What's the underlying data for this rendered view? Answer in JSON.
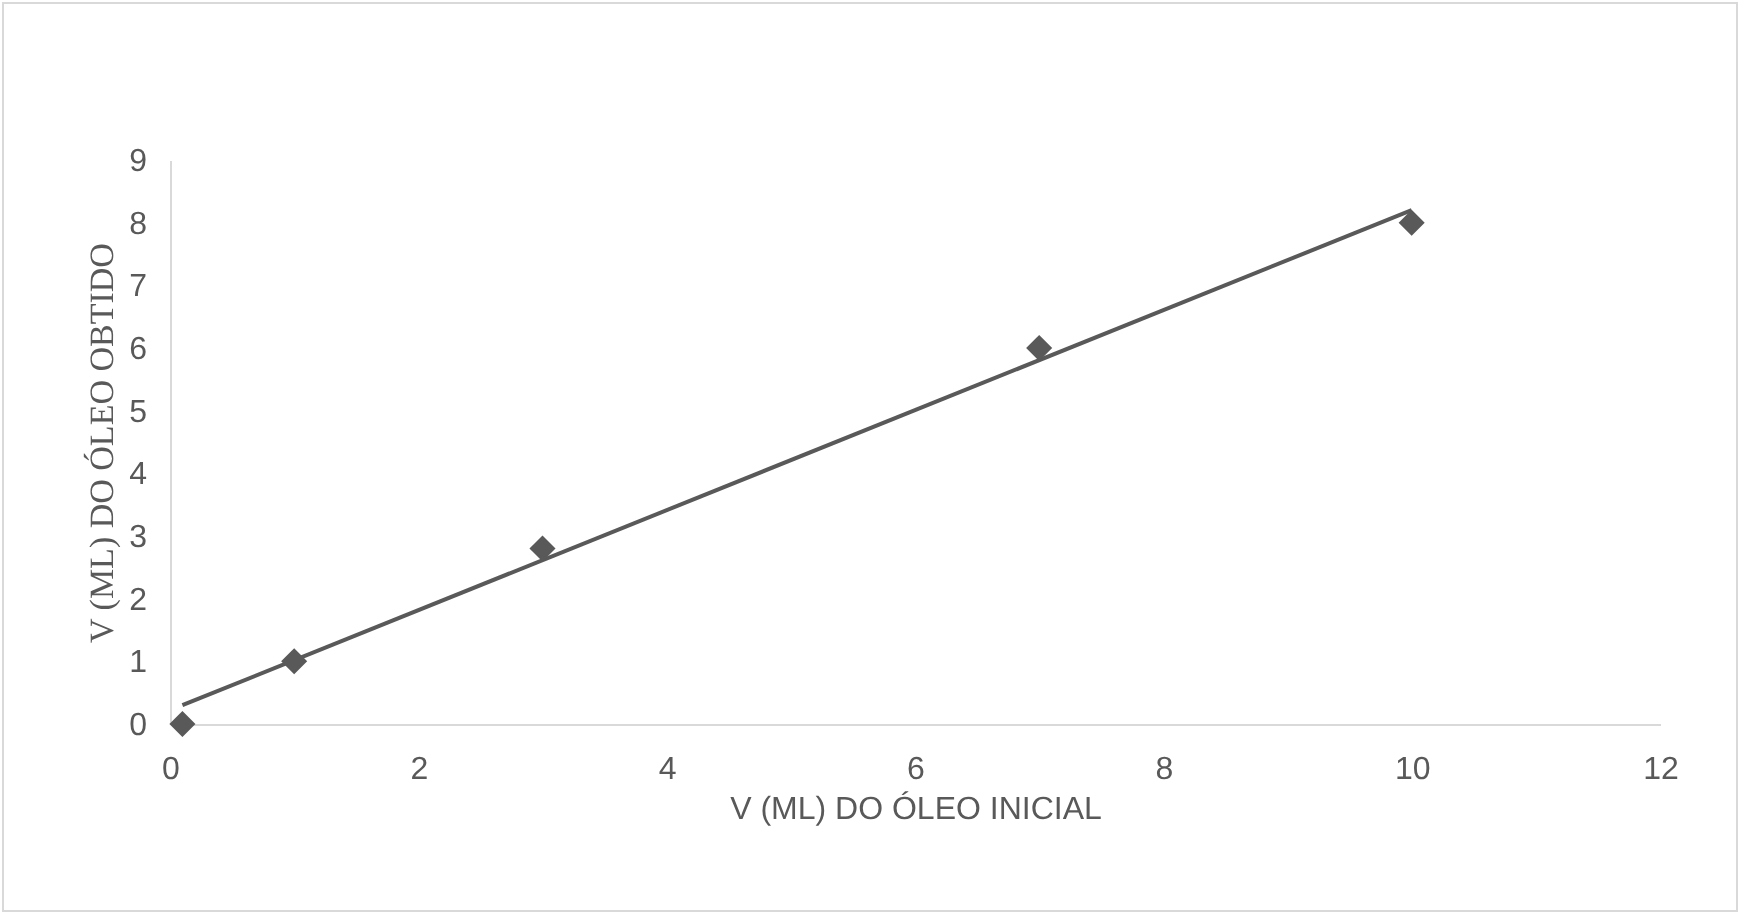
{
  "chart_data": {
    "type": "scatter",
    "xlabel": "V (ML) DO ÓLEO INICIAL",
    "ylabel": "V (ML) DO ÓLEO OBTIDO",
    "xlim": [
      0,
      12
    ],
    "xticks": [
      0,
      2,
      4,
      6,
      8,
      10,
      12
    ],
    "ylim": [
      0,
      9
    ],
    "yticks": [
      0,
      1,
      2,
      3,
      4,
      5,
      6,
      7,
      8,
      9
    ],
    "grid": false,
    "marker": "diamond",
    "series": [
      {
        "type": "scatter",
        "color": "#595959",
        "x": [
          0.1,
          1,
          3,
          7,
          10
        ],
        "values": [
          0,
          1,
          2.8,
          6,
          8
        ]
      },
      {
        "type": "line",
        "color": "#595959",
        "marker": "none",
        "x": [
          0.1,
          10
        ],
        "values": [
          0.3,
          8.2
        ]
      }
    ]
  }
}
